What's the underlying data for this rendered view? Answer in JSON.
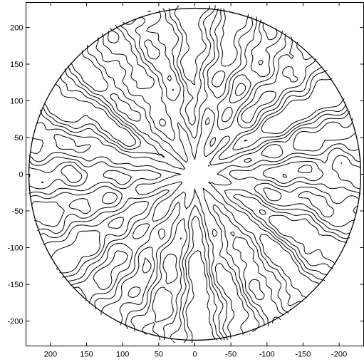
{
  "chart_data": {
    "type": "contour",
    "title": "",
    "xlabel": "",
    "ylabel": "",
    "xlim": [
      234,
      -234
    ],
    "ylim": [
      -234,
      234
    ],
    "x_reversed": true,
    "x_ticks": [
      200,
      150,
      100,
      50,
      0,
      -50,
      -100,
      -150,
      -200
    ],
    "y_ticks": [
      200,
      150,
      100,
      50,
      0,
      -50,
      -100,
      -150,
      -200
    ],
    "boundary": {
      "shape": "circle",
      "center": [
        0,
        0
      ],
      "radius": 230
    },
    "grid": false,
    "legend": "none",
    "line_color": "#000000",
    "contour_levels": [
      0.8,
      0.4,
      0,
      -0.4,
      -0.8
    ],
    "field": {
      "description_free": true,
      "radial_lobes": 12,
      "lobe_phase_deg": 15,
      "noise_amplitude": 0.6
    }
  }
}
